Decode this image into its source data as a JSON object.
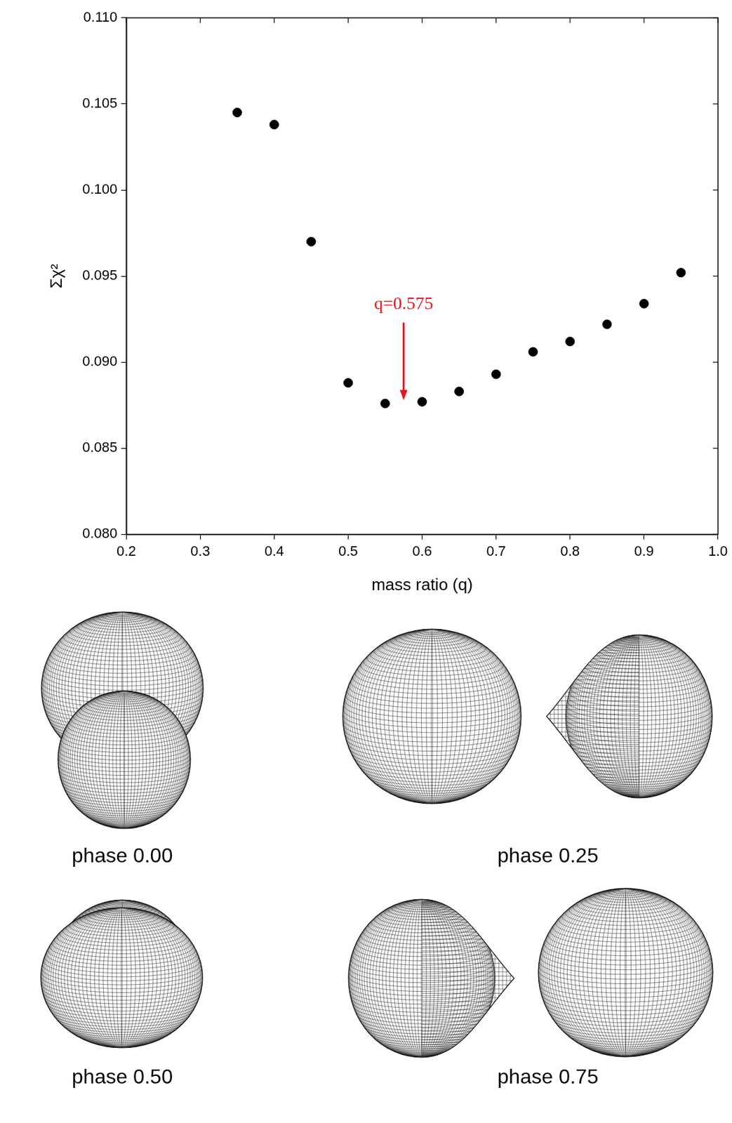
{
  "chart_data": {
    "type": "scatter",
    "x_label": "mass ratio (q)",
    "y_label": "Σχ²",
    "x": [
      0.35,
      0.4,
      0.45,
      0.5,
      0.55,
      0.6,
      0.65,
      0.7,
      0.75,
      0.8,
      0.85,
      0.9,
      0.95
    ],
    "values": [
      0.1045,
      0.1038,
      0.097,
      0.0888,
      0.0876,
      0.0877,
      0.0883,
      0.0893,
      0.0906,
      0.0912,
      0.0922,
      0.0934,
      0.0952
    ],
    "color": "#000000",
    "marker": "circle",
    "xlim": [
      0.2,
      1.0
    ],
    "xticks": [
      0.2,
      0.3,
      0.4,
      0.5,
      0.6,
      0.7,
      0.8,
      0.9,
      {
        "value": 1.0,
        "label": "1.0"
      }
    ],
    "ylim": [
      0.08,
      0.11
    ],
    "yticks": [
      {
        "value": 0.08,
        "label": "0.080"
      },
      {
        "value": 0.085,
        "label": "0.085"
      },
      {
        "value": 0.09,
        "label": "0.090"
      },
      {
        "value": 0.095,
        "label": "0.095"
      },
      {
        "value": 0.1,
        "label": "0.100"
      },
      {
        "value": 0.105,
        "label": "0.105"
      },
      {
        "value": 0.11,
        "label": "0.110"
      }
    ],
    "grid": false,
    "annotations": [
      {
        "text": "q=0.575",
        "x": 0.575,
        "y_from": 0.0923,
        "y_to": 0.0878,
        "color": "#e8141c"
      }
    ]
  },
  "diagrams": [
    {
      "label": "phase 0.00"
    },
    {
      "label": "phase 0.25"
    },
    {
      "label": "phase 0.50"
    },
    {
      "label": "phase 0.75"
    }
  ]
}
